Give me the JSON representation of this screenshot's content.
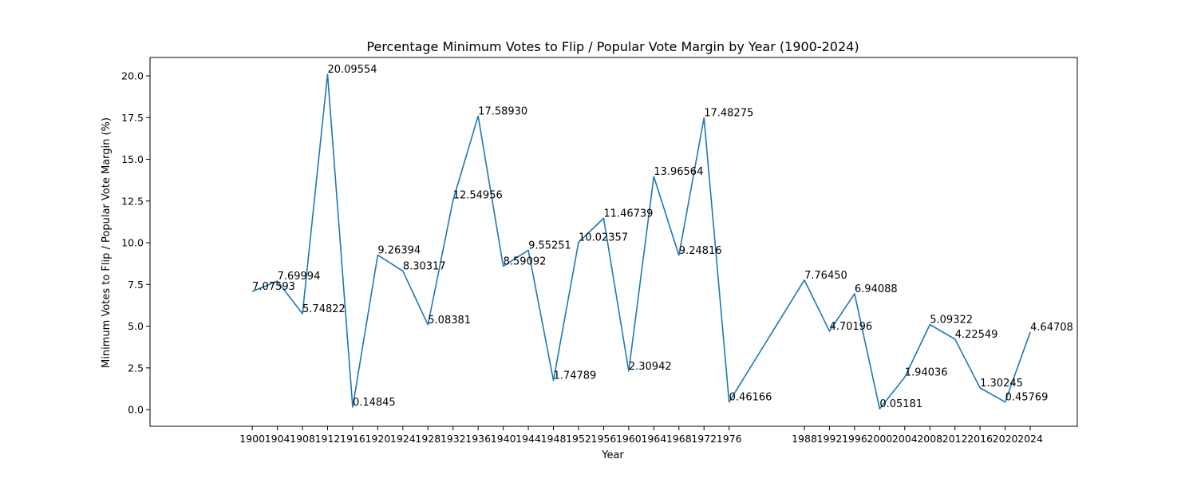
{
  "chart_data": {
    "type": "line",
    "title": "Percentage Minimum Votes to Flip / Popular Vote Margin by Year (1900-2024)",
    "xlabel": "Year",
    "ylabel": "Minimum Votes to Flip / Popular Vote Margin (%)",
    "xlim": [
      1883.7,
      2031.5
    ],
    "ylim": [
      -1.0,
      21.1
    ],
    "x_ticks": [
      1900,
      1904,
      1908,
      1912,
      1916,
      1920,
      1924,
      1928,
      1932,
      1936,
      1940,
      1944,
      1948,
      1952,
      1956,
      1960,
      1964,
      1968,
      1972,
      1976,
      1988,
      1992,
      1996,
      2000,
      2004,
      2008,
      2012,
      2016,
      2020,
      2024
    ],
    "y_ticks": [
      0.0,
      2.5,
      5.0,
      7.5,
      10.0,
      12.5,
      15.0,
      17.5,
      20.0
    ],
    "y_tick_labels": [
      "0.0",
      "2.5",
      "5.0",
      "7.5",
      "10.0",
      "12.5",
      "15.0",
      "17.5",
      "20.0"
    ],
    "grid": false,
    "line_color": "#1f77b4",
    "series": [
      {
        "x": [
          1900,
          1904,
          1908,
          1912,
          1916,
          1920,
          1924,
          1928,
          1932,
          1936,
          1940,
          1944,
          1948,
          1952,
          1956,
          1960,
          1964,
          1968,
          1972,
          1976,
          1988,
          1992,
          1996,
          2000,
          2004,
          2008,
          2012,
          2016,
          2020,
          2024
        ],
        "values": [
          7.07593,
          7.69994,
          5.74822,
          20.09554,
          0.14845,
          9.26394,
          8.30317,
          5.08381,
          12.54956,
          17.5893,
          8.59092,
          9.55251,
          1.74789,
          10.02357,
          11.46739,
          2.30942,
          13.96564,
          9.24816,
          17.48275,
          0.46166,
          7.7645,
          4.70196,
          6.94088,
          0.05181,
          1.94036,
          5.09322,
          4.22549,
          1.30245,
          0.45769,
          4.64708
        ],
        "labels": [
          "7.07593",
          "7.69994",
          "5.74822",
          "20.09554",
          "0.14845",
          "9.26394",
          "8.30317",
          "5.08381",
          "12.54956",
          "17.58930",
          "8.59092",
          "9.55251",
          "1.74789",
          "10.02357",
          "11.46739",
          "2.30942",
          "13.96564",
          "9.24816",
          "17.48275",
          "0.46166",
          "7.76450",
          "4.70196",
          "6.94088",
          "0.05181",
          "1.94036",
          "5.09322",
          "4.22549",
          "1.30245",
          "0.45769",
          "4.64708"
        ]
      }
    ]
  }
}
